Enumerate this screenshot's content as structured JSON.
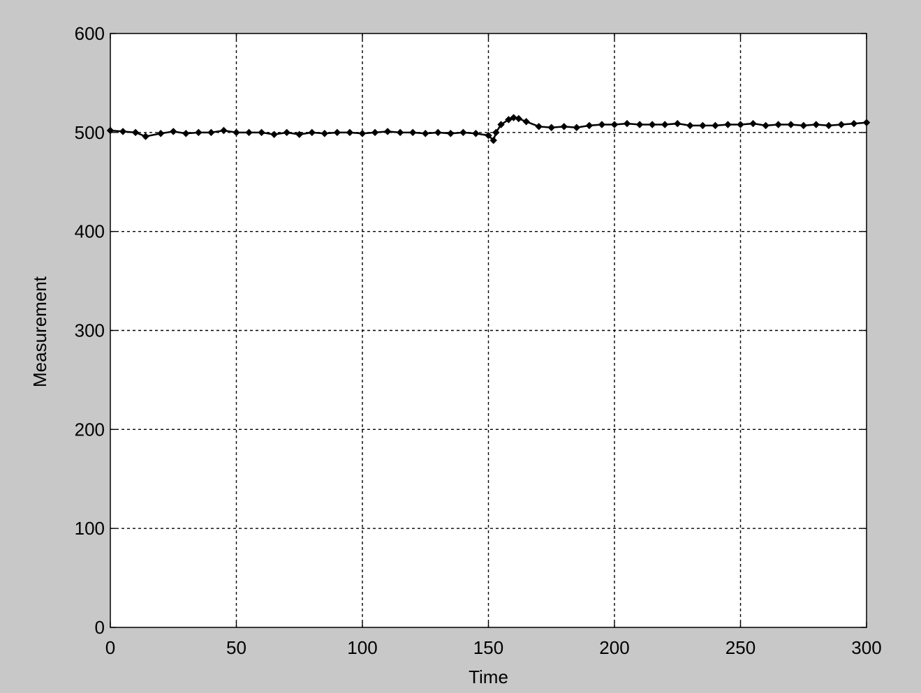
{
  "colors": {
    "figure_background": "#c8c8c8",
    "axes_background": "#ffffff",
    "line": "#000000",
    "grid": "#000000"
  },
  "chart_data": {
    "type": "line",
    "title": "",
    "xlabel": "Time",
    "ylabel": "Measurement",
    "xlim": [
      0,
      300
    ],
    "ylim": [
      0,
      600
    ],
    "xticks": [
      0,
      50,
      100,
      150,
      200,
      250,
      300
    ],
    "yticks": [
      0,
      100,
      200,
      300,
      400,
      500,
      600
    ],
    "grid": true,
    "grid_style": "dashed",
    "marker": "diamond",
    "series": [
      {
        "x": [
          0,
          5,
          10,
          14,
          20,
          25,
          30,
          35,
          40,
          45,
          50,
          55,
          60,
          65,
          70,
          75,
          80,
          85,
          90,
          95,
          100,
          105,
          110,
          115,
          120,
          125,
          130,
          135,
          140,
          145,
          150,
          152,
          153,
          155,
          158,
          160,
          162,
          165,
          170,
          175,
          180,
          185,
          190,
          195,
          200,
          205,
          210,
          215,
          220,
          225,
          230,
          235,
          240,
          245,
          250,
          255,
          260,
          265,
          270,
          275,
          280,
          285,
          290,
          295,
          300
        ],
        "values": [
          502,
          501,
          500,
          496,
          499,
          501,
          499,
          500,
          500,
          502,
          500,
          500,
          500,
          498,
          500,
          498,
          500,
          499,
          500,
          500,
          499,
          500,
          501,
          500,
          500,
          499,
          500,
          499,
          500,
          499,
          497,
          492,
          500,
          508,
          513,
          515,
          514,
          511,
          506,
          505,
          506,
          505,
          507,
          508,
          508,
          509,
          508,
          508,
          508,
          509,
          507,
          507,
          507,
          508,
          508,
          509,
          507,
          508,
          508,
          507,
          508,
          507,
          508,
          509,
          510
        ]
      }
    ]
  }
}
